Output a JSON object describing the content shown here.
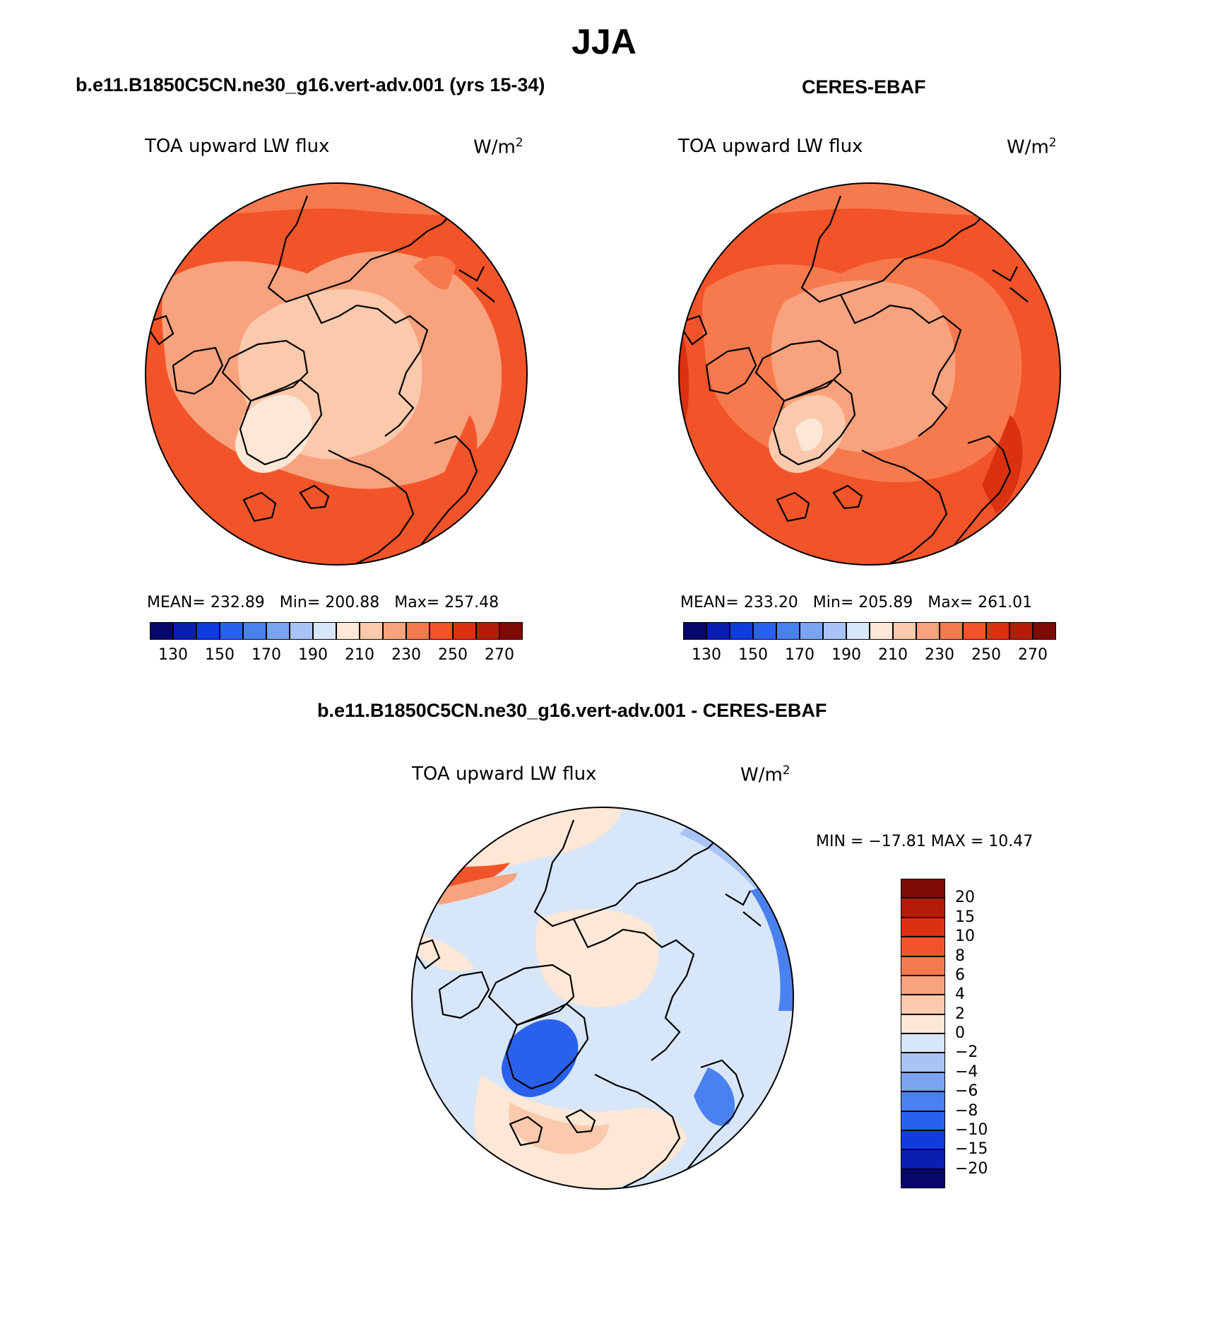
{
  "figure": {
    "title": "JJA"
  },
  "panels": [
    {
      "id": "model",
      "title": "b.e11.B1850C5CN.ne30_g16.vert-adv.001 (yrs 15-34)",
      "variable": "TOA upward LW flux",
      "units": "W/m",
      "units_sup": "2",
      "stats": {
        "mean_label": "MEAN=",
        "mean": "232.89",
        "min_label": "Min=",
        "min": "200.88",
        "max_label": "Max=",
        "max": "257.48"
      }
    },
    {
      "id": "obs",
      "title": "CERES-EBAF",
      "variable": "TOA upward LW flux",
      "units": "W/m",
      "units_sup": "2",
      "stats": {
        "mean_label": "MEAN=",
        "mean": "233.20",
        "min_label": "Min=",
        "min": "205.89",
        "max_label": "Max=",
        "max": "261.01"
      }
    },
    {
      "id": "diff",
      "title": "b.e11.B1850C5CN.ne30_g16.vert-adv.001 - CERES-EBAF",
      "variable": "TOA upward LW flux",
      "units": "W/m",
      "units_sup": "2",
      "minmax": "MIN = −17.81 MAX =   10.47"
    }
  ],
  "colorbars": {
    "absolute": {
      "colors": [
        "#08076b",
        "#0a1fb0",
        "#0f3ddb",
        "#2a61ec",
        "#4a81f0",
        "#7aa3f2",
        "#a8c4f6",
        "#d8e6fa",
        "#fde7d6",
        "#fbc9ac",
        "#f8a27e",
        "#f77a4e",
        "#f2542a",
        "#da3210",
        "#b31d08",
        "#7e0a04"
      ],
      "tick_labels": [
        "130",
        "150",
        "170",
        "190",
        "210",
        "230",
        "250",
        "270"
      ]
    },
    "difference": {
      "colors": [
        "#7e0a04",
        "#b31d08",
        "#da3210",
        "#f2542a",
        "#f77a4e",
        "#f8a27e",
        "#fbc9ac",
        "#fde7d6",
        "#d8e6fa",
        "#a8c4f6",
        "#7aa3f2",
        "#4a81f0",
        "#2a61ec",
        "#0f3ddb",
        "#0a1fb0",
        "#08076b"
      ],
      "tick_labels": [
        "20",
        "15",
        "10",
        "8",
        "6",
        "4",
        "2",
        "0",
        "−2",
        "−4",
        "−6",
        "−8",
        "−10",
        "−15",
        "−20"
      ]
    }
  },
  "map_colors": {
    "model_background": "#f2542a",
    "model_mid": "#f77a4e",
    "model_light": "#f8a27e",
    "model_pale": "#fbc9ac",
    "model_ice": "#fde7d6",
    "diff_background": "#d8e6fa",
    "diff_warm": "#fde7d6",
    "diff_warm2": "#fbc9ac",
    "diff_cool": "#a8c4f6",
    "diff_cool2": "#4a81f0",
    "diff_hot": "#f2542a"
  },
  "map_data": {
    "projection": "north polar stereographic",
    "season": "JJA"
  }
}
